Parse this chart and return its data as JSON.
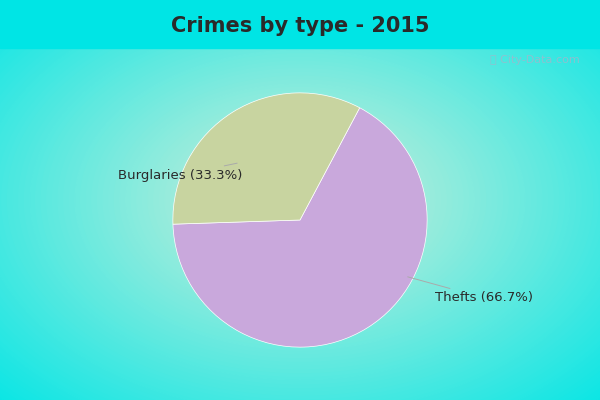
{
  "title": "Crimes by type - 2015",
  "slices": [
    {
      "label": "Thefts (66.7%)",
      "value": 66.7,
      "color": "#C9A8DC"
    },
    {
      "label": "Burglaries (33.3%)",
      "value": 33.3,
      "color": "#C8D4A0"
    }
  ],
  "bg_color_border": "#00E5E5",
  "bg_color_center": "#D8EED8",
  "title_fontsize": 15,
  "title_color": "#2a2a2a",
  "label_fontsize": 9.5,
  "label_color": "#2a2a2a",
  "watermark": "City-Data.com",
  "title_bg": "#00E5E5"
}
